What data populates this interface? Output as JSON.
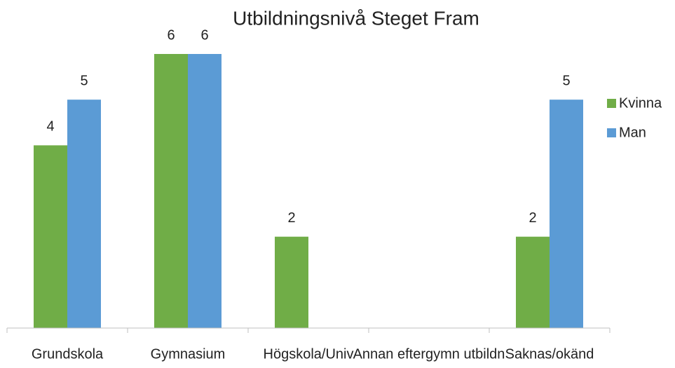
{
  "chart_data": {
    "type": "bar",
    "title": "Utbildningsnivå Steget Fram",
    "categories": [
      "Grundskola",
      "Gymnasium",
      "Högskola/Univ",
      "Annan eftergymn utbildn",
      "Saknas/okänd"
    ],
    "series": [
      {
        "name": "Kvinna",
        "color": "#70ad47",
        "values": [
          4,
          6,
          2,
          null,
          2
        ]
      },
      {
        "name": "Man",
        "color": "#5b9bd5",
        "values": [
          5,
          6,
          null,
          null,
          5
        ]
      }
    ],
    "ylim": [
      0,
      6
    ],
    "legend": "right"
  }
}
